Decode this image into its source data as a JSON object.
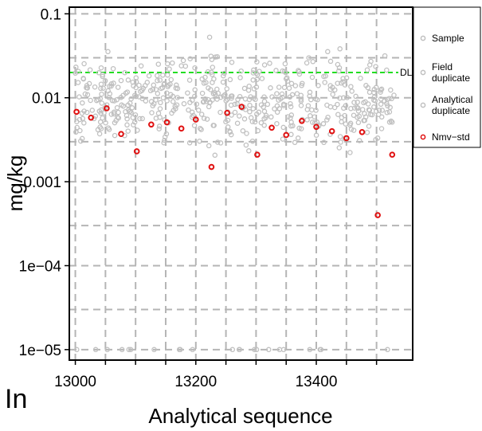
{
  "chart_data": {
    "type": "scatter",
    "xlabel": "Analytical sequence",
    "ylabel": "mg/kg",
    "corner_label": "In",
    "xlim": [
      12990,
      13560
    ],
    "ylim": [
      7.5e-06,
      0.12
    ],
    "yscale": "log",
    "grid": true,
    "legend_position": "right",
    "x_ticks": [
      {
        "value": 13000,
        "label": "13000"
      },
      {
        "value": 13200,
        "label": "13200"
      },
      {
        "value": 13400,
        "label": "13400"
      }
    ],
    "y_ticks": [
      {
        "value": 0.1,
        "label": "0.1"
      },
      {
        "value": 0.01,
        "label": "0.01"
      },
      {
        "value": 0.001,
        "label": "0.001"
      },
      {
        "value": 0.0001,
        "label": "1e−04"
      },
      {
        "value": 1e-05,
        "label": "1e−05"
      }
    ],
    "reference_line": {
      "label": "DL",
      "value": 0.02,
      "color": "#22dd22"
    },
    "colors": {
      "sample": "#c0c0c0",
      "nmv": "#e01010",
      "grid": "#b5b5b5"
    },
    "legend": [
      {
        "lines": [
          "Sample"
        ],
        "color": "#c0c0c0"
      },
      {
        "lines": [
          "Field",
          " duplicate"
        ],
        "color": "#c0c0c0"
      },
      {
        "lines": [
          "Analytical",
          "duplicate"
        ],
        "color": "#c0c0c0"
      },
      {
        "lines": [
          "Nmv−std"
        ],
        "color": "#e01010"
      }
    ],
    "series": [
      {
        "name": "Nmv−std",
        "color": "#e01010",
        "x": [
          13002,
          13026,
          13052,
          13076,
          13102,
          13126,
          13152,
          13176,
          13200,
          13226,
          13252,
          13276,
          13302,
          13326,
          13350,
          13376,
          13400,
          13426,
          13450,
          13476,
          13502,
          13526
        ],
        "y": [
          0.0068,
          0.0058,
          0.0075,
          0.0037,
          0.0023,
          0.0048,
          0.0051,
          0.0043,
          0.0055,
          0.0015,
          0.0066,
          0.0078,
          0.0021,
          0.0044,
          0.0036,
          0.0053,
          0.0045,
          0.004,
          0.0033,
          0.0039,
          0.0004,
          0.0021
        ]
      }
    ]
  }
}
